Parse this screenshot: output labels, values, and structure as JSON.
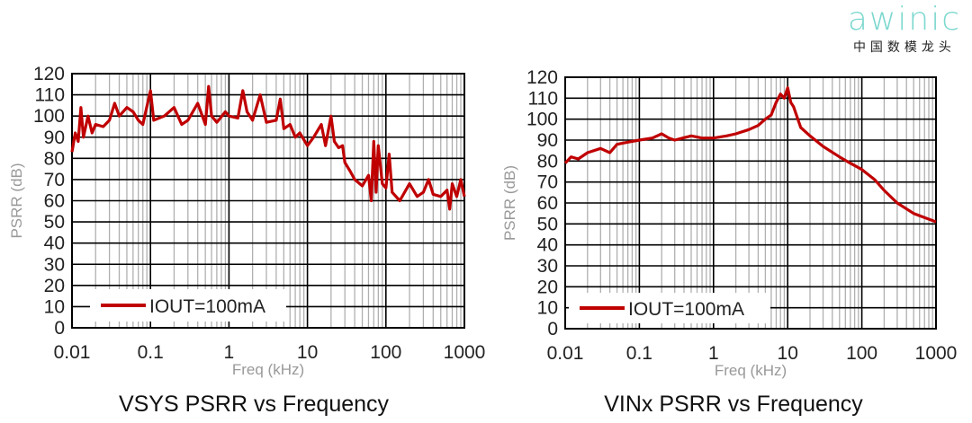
{
  "logo": {
    "brand": "awinic",
    "subtitle": "中国数模龙头"
  },
  "chart_data": [
    {
      "type": "line",
      "title": "VSYS PSRR vs Frequency",
      "xlabel": "Freq (kHz)",
      "ylabel": "PSRR (dB)",
      "xscale": "log",
      "xlim": [
        0.01,
        1000
      ],
      "ylim": [
        0,
        120
      ],
      "xticks": [
        "0.01",
        "0.1",
        "1",
        "10",
        "100",
        "1000"
      ],
      "yticks": [
        "0",
        "10",
        "20",
        "30",
        "40",
        "50",
        "60",
        "70",
        "80",
        "90",
        "100",
        "110",
        "120"
      ],
      "grid": true,
      "legend_position": "bottom-left",
      "color": "#c00000",
      "series": [
        {
          "name": "IOUT=100mA",
          "x": [
            0.01,
            0.011,
            0.012,
            0.013,
            0.014,
            0.016,
            0.018,
            0.02,
            0.025,
            0.03,
            0.035,
            0.04,
            0.05,
            0.06,
            0.07,
            0.08,
            0.1,
            0.11,
            0.15,
            0.2,
            0.25,
            0.3,
            0.4,
            0.5,
            0.55,
            0.6,
            0.7,
            0.9,
            1.0,
            1.3,
            1.5,
            1.7,
            2,
            2.5,
            3,
            4,
            4.5,
            5,
            6,
            7,
            8,
            10,
            12,
            15,
            17,
            20,
            22,
            25,
            28,
            30,
            35,
            40,
            50,
            60,
            65,
            70,
            75,
            80,
            90,
            100,
            110,
            120,
            150,
            200,
            250,
            300,
            350,
            400,
            500,
            600,
            650,
            700,
            800,
            900,
            1000
          ],
          "y": [
            83,
            92,
            88,
            104,
            90,
            100,
            92,
            96,
            95,
            98,
            106,
            100,
            104,
            102,
            98,
            96,
            112,
            98,
            100,
            104,
            96,
            98,
            106,
            96,
            114,
            100,
            97,
            102,
            100,
            99,
            112,
            102,
            98,
            110,
            97,
            98,
            108,
            94,
            96,
            90,
            92,
            86,
            90,
            96,
            86,
            100,
            88,
            85,
            86,
            78,
            74,
            70,
            67,
            72,
            60,
            88,
            64,
            86,
            68,
            66,
            82,
            64,
            60,
            68,
            62,
            64,
            70,
            63,
            62,
            65,
            56,
            68,
            62,
            70,
            62
          ]
        }
      ]
    },
    {
      "type": "line",
      "title": "VINx PSRR vs Frequency",
      "xlabel": "Freq (kHz)",
      "ylabel": "PSRR (dB)",
      "xscale": "log",
      "xlim": [
        0.01,
        1000
      ],
      "ylim": [
        0,
        120
      ],
      "xticks": [
        "0.01",
        "0.1",
        "1",
        "10",
        "100",
        "1000"
      ],
      "yticks": [
        "0",
        "10",
        "20",
        "30",
        "40",
        "50",
        "60",
        "70",
        "80",
        "90",
        "100",
        "110",
        "120"
      ],
      "grid": true,
      "legend_position": "bottom-left",
      "color": "#c00000",
      "series": [
        {
          "name": "IOUT=100mA",
          "x": [
            0.01,
            0.012,
            0.015,
            0.02,
            0.03,
            0.04,
            0.05,
            0.07,
            0.1,
            0.15,
            0.2,
            0.25,
            0.3,
            0.5,
            0.7,
            1,
            1.5,
            2,
            3,
            4,
            5,
            6,
            7,
            8,
            9,
            10,
            11,
            12,
            15,
            20,
            30,
            50,
            70,
            100,
            150,
            200,
            300,
            500,
            700,
            1000
          ],
          "y": [
            79,
            82,
            81,
            84,
            86,
            84,
            88,
            89,
            90,
            91,
            93,
            91,
            90,
            92,
            91,
            91,
            92,
            93,
            95,
            97,
            100,
            102,
            108,
            112,
            110,
            115,
            108,
            106,
            96,
            92,
            87,
            82,
            79,
            76,
            71,
            66,
            60,
            55,
            53,
            51
          ]
        }
      ]
    }
  ]
}
